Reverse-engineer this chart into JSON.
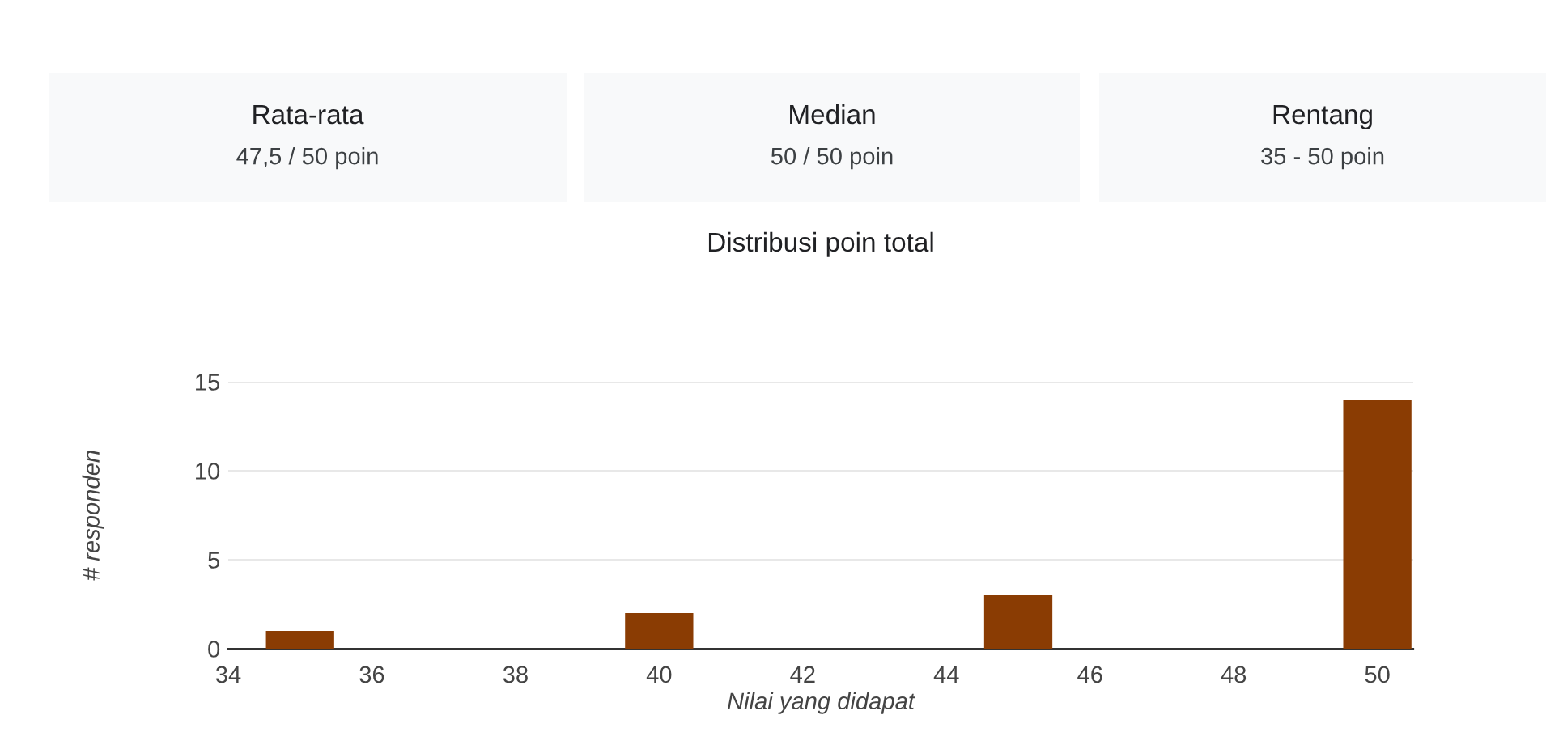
{
  "chart_data": [
    {
      "type": "other",
      "title": "Rata-rata",
      "annotations": [
        "47,5 / 50 poin"
      ]
    },
    {
      "type": "other",
      "title": "Median",
      "annotations": [
        "50 / 50 poin"
      ]
    },
    {
      "type": "other",
      "title": "Rentang",
      "annotations": [
        "35 - 50 poin"
      ]
    },
    {
      "type": "bar",
      "title": "Distribusi poin total",
      "xlabel": "Nilai yang didapat",
      "ylabel": "# responden",
      "x": [
        35,
        40,
        45,
        50
      ],
      "values": [
        1,
        2,
        3,
        14
      ],
      "color": "#8a3c03",
      "xlim": [
        34,
        50.5
      ],
      "xticks": [
        34,
        36,
        38,
        40,
        42,
        44,
        46,
        48,
        50
      ],
      "ylim": [
        0,
        15
      ],
      "yticks": [
        0,
        5,
        10,
        15
      ],
      "grid": "y",
      "legend": false
    }
  ]
}
